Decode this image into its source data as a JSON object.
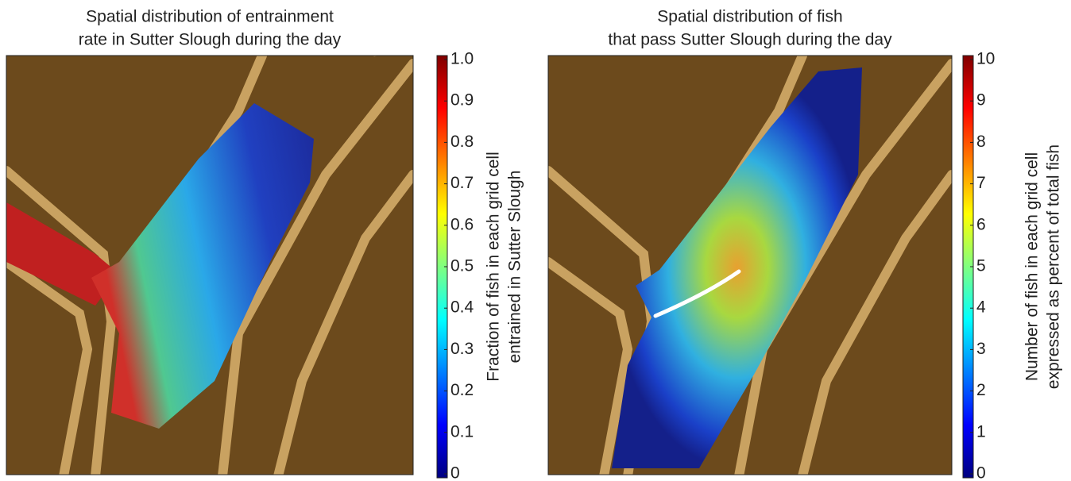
{
  "chart_data": [
    {
      "type": "heatmap",
      "title": [
        "Spatial distribution of entrainment",
        "rate in Sutter Slough during the day"
      ],
      "colorbar_label": [
        "Fraction of fish in each grid cell",
        "entrained in Sutter Slough"
      ],
      "zlim": [
        0,
        1
      ],
      "zticks": [
        0,
        0.1,
        0.2,
        0.3,
        0.4,
        0.5,
        0.6,
        0.7,
        0.8,
        0.9,
        {
          "value": 1,
          "label": "1.0"
        }
      ]
    },
    {
      "type": "heatmap",
      "title": [
        "Spatial distribution of fish",
        "that pass Sutter Slough during the day"
      ],
      "colorbar_label": [
        "Number of fish in each grid cell",
        "expressed as percent of total fish"
      ],
      "zlim": [
        0,
        10
      ],
      "zticks": [
        0,
        1,
        2,
        3,
        4,
        5,
        6,
        7,
        8,
        9,
        10
      ]
    }
  ]
}
